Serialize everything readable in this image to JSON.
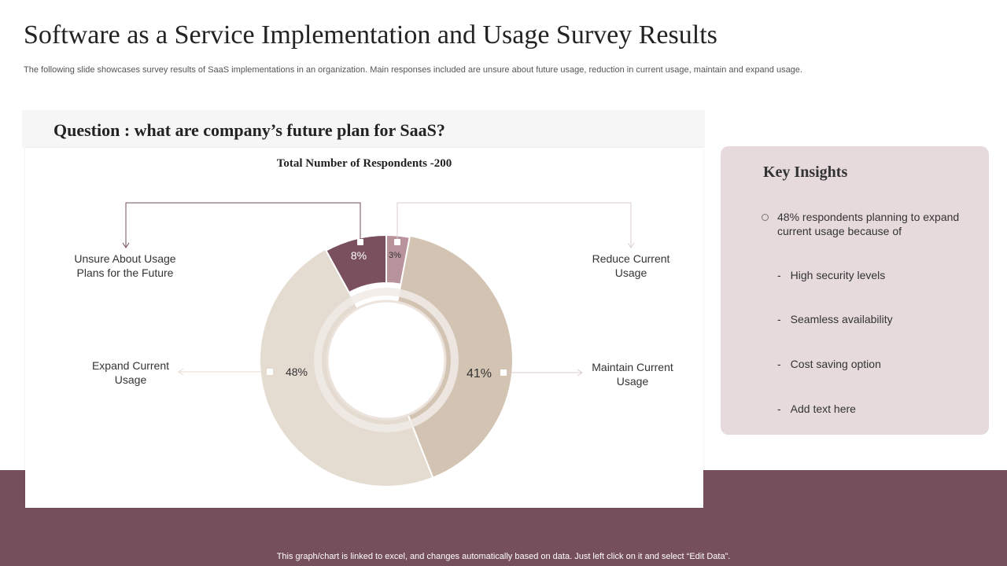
{
  "slide": {
    "title": "Software as a Service Implementation and Usage Survey Results",
    "subtitle": "The following slide showcases survey results of SaaS implementations in an organization. Main responses included are unsure about future usage, reduction in current usage, maintain and expand usage.",
    "question": "Question : what are company’s future plan for SaaS?",
    "footer_note": "This graph/chart is linked to excel,  and changes automatically based on data. Just left click on it and select “Edit Data”."
  },
  "chart_data": {
    "type": "pie",
    "style": "donut",
    "title": "Total Number  of Respondents -200",
    "total_respondents": 200,
    "categories": [
      "Unsure About Usage Plans for the Future",
      "Reduce Current Usage",
      "Maintain Current Usage",
      "Expand Current Usage"
    ],
    "label_lines": [
      [
        "Unsure About Usage",
        "Plans for the Future"
      ],
      [
        "Reduce Current",
        "Usage"
      ],
      [
        "Maintain Current",
        "Usage"
      ],
      [
        "Expand Current",
        "Usage"
      ]
    ],
    "values": [
      8,
      3,
      41,
      48
    ],
    "value_labels": [
      "8%",
      "3%",
      "41%",
      "48%"
    ],
    "colors": [
      "#7b505e",
      "#b8939b",
      "#d3c3b2",
      "#e4dbd1"
    ]
  },
  "insights": {
    "title": "Key Insights",
    "lead": "48% respondents planning to expand current usage because of",
    "items": [
      "High security levels",
      "Seamless availability",
      "Cost saving option",
      "Add text here"
    ]
  },
  "colors": {
    "band": "#764f5d",
    "insights_bg": "#e7dadc",
    "question_bg": "#f7f6f6"
  }
}
